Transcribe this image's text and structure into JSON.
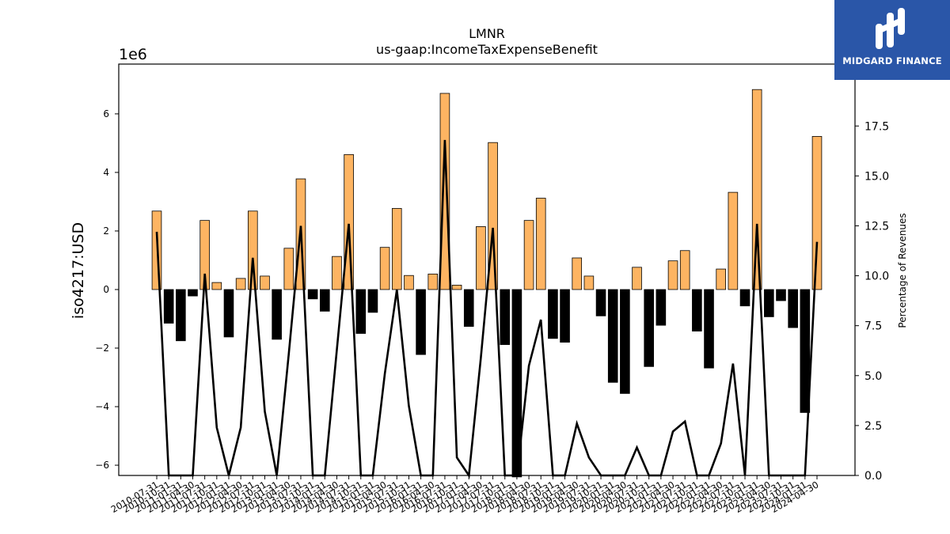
{
  "brand": {
    "name": "MIDGARD FINANCE",
    "colors": {
      "background": "#2a56a8",
      "text": "#ffffff"
    }
  },
  "chart_data": {
    "type": "bar",
    "title": "LMNR",
    "subtitle": "us-gaap:IncomeTaxExpenseBenefit",
    "ylabel": "iso4217:USD",
    "y_scale_label": "1e6",
    "y2label": "Percentage of Revenues",
    "ylim": [
      -6.35,
      7.7
    ],
    "y2lim": [
      0,
      20.6
    ],
    "yticks": [
      -6,
      -4,
      -2,
      0,
      2,
      4,
      6
    ],
    "y2ticks": [
      0.0,
      2.5,
      5.0,
      7.5,
      10.0,
      12.5,
      15.0,
      17.5
    ],
    "grid": false,
    "legend": "none",
    "colors": {
      "positive": "#fdb462",
      "negative": "#000000",
      "line": "#000000",
      "bar_edge": "#000000"
    },
    "categories": [
      "2010-07-31",
      "2010-10-31",
      "2011-01-31",
      "2011-04-30",
      "2011-07-31",
      "2011-10-31",
      "2012-01-31",
      "2012-04-30",
      "2012-07-31",
      "2012-10-31",
      "2013-01-31",
      "2013-04-30",
      "2013-07-31",
      "2013-10-31",
      "2014-01-31",
      "2014-04-30",
      "2014-07-31",
      "2014-10-31",
      "2015-01-31",
      "2015-04-30",
      "2015-07-31",
      "2015-10-31",
      "2016-01-31",
      "2016-04-30",
      "2016-07-31",
      "2016-10-31",
      "2017-01-31",
      "2017-04-30",
      "2017-07-31",
      "2017-10-31",
      "2018-01-31",
      "2018-04-30",
      "2018-07-31",
      "2018-10-31",
      "2019-01-31",
      "2019-04-30",
      "2019-07-31",
      "2019-10-31",
      "2020-01-31",
      "2020-04-30",
      "2020-07-31",
      "2020-10-31",
      "2021-01-31",
      "2021-04-30",
      "2021-07-31",
      "2021-10-31",
      "2022-01-31",
      "2022-04-30",
      "2022-07-31",
      "2022-10-31",
      "2023-01-31",
      "2023-04-30",
      "2023-07-31",
      "2023-10-31",
      "2024-01-31",
      "2024-04-30"
    ],
    "series": [
      {
        "values": [
          2.68,
          -1.15,
          -1.75,
          -0.22,
          2.36,
          0.24,
          -1.62,
          0.38,
          2.68,
          0.46,
          -1.7,
          1.41,
          3.78,
          -0.32,
          -0.74,
          1.13,
          4.61,
          -1.5,
          -0.78,
          1.44,
          2.77,
          0.48,
          -2.22,
          0.53,
          6.7,
          0.15,
          -1.26,
          2.15,
          5.02,
          -1.88,
          -6.4,
          2.36,
          3.12,
          -1.67,
          -1.8,
          1.08,
          0.46,
          -0.9,
          -3.17,
          -3.55,
          0.76,
          -2.63,
          -1.22,
          0.98,
          1.33,
          -1.42,
          -2.68,
          0.7,
          3.32,
          -0.56,
          6.83,
          -0.93,
          -0.38,
          -1.3,
          -4.2,
          5.23
        ]
      },
      {
        "values": [
          12.2,
          0.0,
          0.0,
          0.0,
          10.1,
          2.4,
          0.0,
          2.4,
          10.9,
          3.2,
          0.0,
          6.1,
          12.5,
          0.0,
          0.0,
          6.3,
          12.6,
          0.0,
          0.0,
          5.1,
          9.3,
          3.5,
          0.0,
          0.0,
          16.8,
          0.9,
          0.0,
          5.9,
          12.4,
          0.0,
          0.0,
          5.5,
          7.8,
          0.0,
          0.0,
          2.6,
          0.9,
          0.0,
          0.0,
          0.0,
          1.4,
          0.0,
          0.0,
          2.2,
          2.7,
          0.0,
          0.0,
          1.6,
          5.6,
          0.0,
          12.6,
          0.0,
          0.0,
          0.0,
          0.0,
          11.7
        ]
      }
    ]
  }
}
